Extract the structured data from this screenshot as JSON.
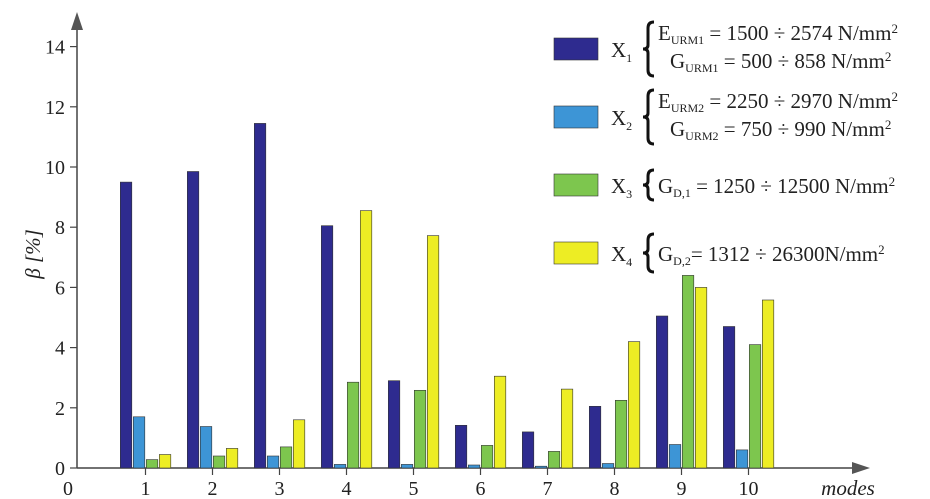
{
  "colors": {
    "X1": "#2e2b8f",
    "X2": "#3d95d6",
    "X3": "#7dc64e",
    "X4": "#eded24"
  },
  "chart_data": {
    "type": "bar",
    "xlabel": "modes",
    "ylabel": "β [%]",
    "ylim": [
      0,
      15
    ],
    "yticks": [
      "0",
      "2",
      "4",
      "6",
      "8",
      "10",
      "12",
      "14"
    ],
    "x_origin_label": "0",
    "categories": [
      "1",
      "2",
      "3",
      "4",
      "5",
      "6",
      "7",
      "8",
      "9",
      "10"
    ],
    "grid": false,
    "legend_position": "top-right",
    "series": [
      {
        "name": "X1",
        "legend": {
          "var": "X",
          "idx": "1",
          "lines": [
            {
              "sym": "E",
              "sub": "URM1",
              "text": " = 1500 ÷ 2574 N/mm",
              "sup": "2"
            },
            {
              "sym": "G",
              "sub": "URM1",
              "text": " = 500 ÷ 858 N/mm",
              "sup": "2"
            }
          ]
        },
        "values": [
          9.5,
          9.85,
          11.45,
          8.05,
          2.9,
          1.42,
          1.2,
          2.05,
          5.05,
          4.7
        ]
      },
      {
        "name": "X2",
        "legend": {
          "var": "X",
          "idx": "2",
          "lines": [
            {
              "sym": "E",
              "sub": "URM2",
              "text": " = 2250 ÷ 2970 N/mm",
              "sup": "2"
            },
            {
              "sym": "G",
              "sub": "URM2",
              "text": " = 750 ÷ 990 N/mm",
              "sup": "2"
            }
          ]
        },
        "values": [
          1.7,
          1.38,
          0.4,
          0.12,
          0.12,
          0.1,
          0.06,
          0.15,
          0.78,
          0.6
        ]
      },
      {
        "name": "X3",
        "legend": {
          "var": "X",
          "idx": "3",
          "lines": [
            {
              "sym": "G",
              "sub": "D,1",
              "text": " = 1250 ÷ 12500 N/mm",
              "sup": "2"
            }
          ]
        },
        "values": [
          0.28,
          0.4,
          0.7,
          2.85,
          2.58,
          0.75,
          0.55,
          2.25,
          6.4,
          4.1
        ]
      },
      {
        "name": "X4",
        "legend": {
          "var": "X",
          "idx": "4",
          "lines": [
            {
              "sym": "G",
              "sub": "D,2",
              "text": "= 1312 ÷ 26300N/mm",
              "sup": "2"
            }
          ]
        },
        "values": [
          0.45,
          0.65,
          1.6,
          8.55,
          7.72,
          3.05,
          2.62,
          4.2,
          6.0,
          5.58
        ]
      }
    ]
  }
}
